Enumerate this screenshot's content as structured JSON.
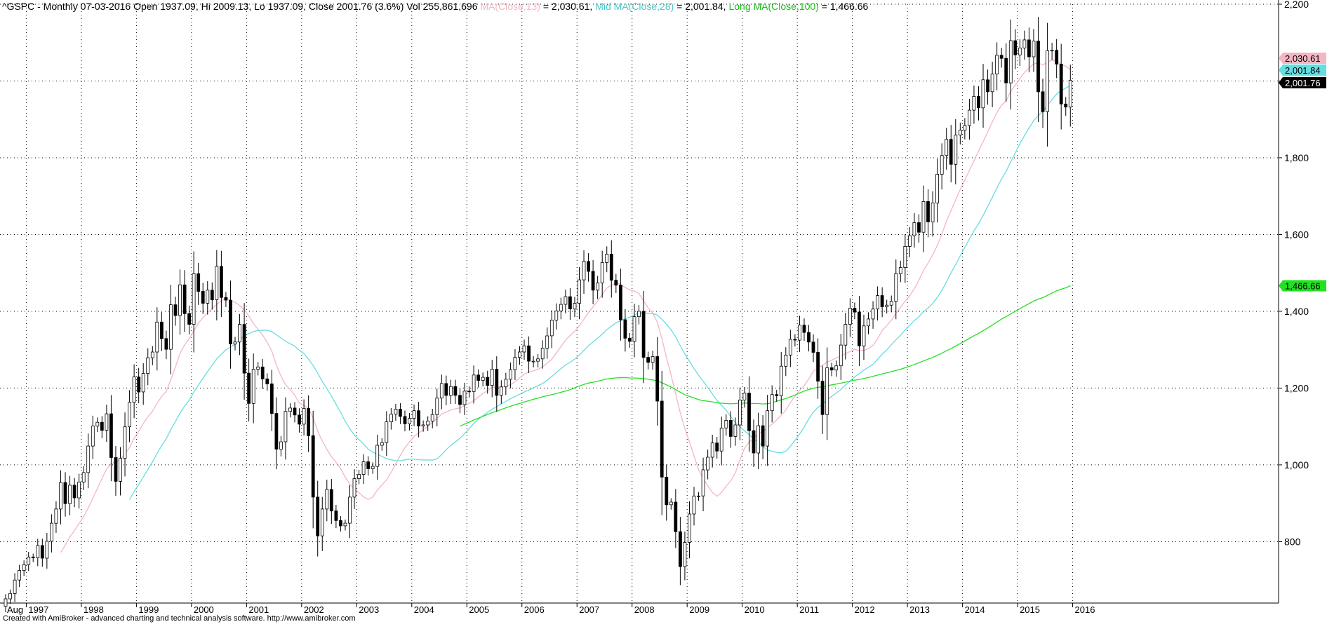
{
  "header": {
    "symbol_info": "^GSPC - Monthly 07-03-2016 Open 1937.09, Hi 2009.13, Lo 1937.09, Close 2001.76 (3.6%) Vol 255,861,696",
    "ma_label": "MA(Close,13)",
    "ma_value": " = 2,030.61,",
    "mid_label": "Mid MA(Close,28)",
    "mid_value": " = 2,001.84,",
    "long_label": "Long MA(Close,100)",
    "long_value": " = 1,466.66"
  },
  "footer": {
    "text": "Created with AmiBroker - advanced charting and technical analysis software. http://www.amibroker.com"
  },
  "colors": {
    "bull_body": "#ffffff",
    "bear_body": "#000000",
    "ma13": "#f4b6c2",
    "ma28": "#66dde0",
    "ma100": "#22e022",
    "grid": "#000000",
    "marker": "#aab3f5"
  },
  "chart_data": {
    "type": "candlestick",
    "title": "^GSPC - Monthly",
    "x_first_label": "Aug",
    "x_tick_labels": [
      "1997",
      "1998",
      "1999",
      "2000",
      "2001",
      "2002",
      "2003",
      "2004",
      "2005",
      "2006",
      "2007",
      "2008",
      "2009",
      "2010",
      "2011",
      "2012",
      "2013",
      "2014",
      "2015",
      "2016"
    ],
    "y_tick_labels": [
      "2,200",
      "2,000",
      "1,800",
      "1,600",
      "1,400",
      "1,200",
      "1,000",
      "800"
    ],
    "ylim": [
      640,
      2200
    ],
    "grid": true,
    "price_tags": [
      {
        "name": "ma13",
        "label": "2,030.61",
        "value": 2030.61,
        "color": "#f4b6c2"
      },
      {
        "name": "ma28",
        "label": "2,001.84",
        "value": 2001.84,
        "color": "#66dde0"
      },
      {
        "name": "close",
        "label": "2,001.76",
        "value": 2001.76,
        "color": "#000000"
      },
      {
        "name": "ma100",
        "label": "1,466.66",
        "value": 1466.66,
        "color": "#22e022"
      }
    ],
    "series": [
      {
        "name": "MA(Close,13)",
        "color": "#f4b6c2"
      },
      {
        "name": "Mid MA(Close,28)",
        "color": "#66dde0"
      },
      {
        "name": "Long MA(Close,100)",
        "color": "#22e022"
      }
    ],
    "start": "1996-08",
    "close": [
      651,
      665,
      700,
      725,
      740,
      760,
      758,
      790,
      757,
      801,
      848,
      885,
      954,
      899,
      947,
      914,
      955,
      980,
      1049,
      1101,
      1111,
      1090,
      1133,
      1019,
      957,
      1017,
      1099,
      1163,
      1229,
      1190,
      1238,
      1279,
      1294,
      1372,
      1329,
      1301,
      1417,
      1389,
      1469,
      1394,
      1366,
      1498,
      1452,
      1421,
      1455,
      1430,
      1517,
      1436,
      1429,
      1315,
      1320,
      1366,
      1239,
      1160,
      1249,
      1255,
      1224,
      1211,
      1134,
      1041,
      1060,
      1139,
      1148,
      1130,
      1106,
      1147,
      1076,
      916,
      815,
      885,
      936,
      880,
      855,
      841,
      848,
      916,
      964,
      975,
      1008,
      990,
      996,
      1051,
      1058,
      1112,
      1132,
      1145,
      1126,
      1107,
      1121,
      1141,
      1101,
      1104,
      1114,
      1131,
      1174,
      1212,
      1181,
      1204,
      1181,
      1157,
      1192,
      1191,
      1234,
      1220,
      1228,
      1207,
      1249,
      1181,
      1203,
      1223,
      1248,
      1280,
      1294,
      1310,
      1270,
      1270,
      1276,
      1304,
      1336,
      1377,
      1401,
      1418,
      1438,
      1406,
      1421,
      1482,
      1530,
      1504,
      1455,
      1474,
      1527,
      1549,
      1481,
      1468,
      1378,
      1330,
      1322,
      1386,
      1400,
      1280,
      1267,
      1282,
      1166,
      968,
      896,
      903,
      826,
      735,
      798,
      872,
      919,
      919,
      987,
      1020,
      1057,
      1036,
      1096,
      1116,
      1074,
      1104,
      1169,
      1187,
      1089,
      1031,
      1102,
      1049,
      1141,
      1183,
      1180,
      1257,
      1286,
      1327,
      1325,
      1364,
      1345,
      1320,
      1293,
      1218,
      1131,
      1253,
      1247,
      1258,
      1312,
      1366,
      1408,
      1398,
      1310,
      1362,
      1380,
      1406,
      1441,
      1412,
      1416,
      1426,
      1498,
      1514,
      1569,
      1597,
      1631,
      1606,
      1686,
      1633,
      1682,
      1757,
      1806,
      1848,
      1783,
      1859,
      1872,
      1884,
      1924,
      1960,
      1930,
      2003,
      1972,
      2018,
      2067,
      2059,
      1995,
      2105,
      2068,
      2086,
      2107,
      2063,
      2104,
      1972,
      1920,
      2079,
      2080,
      2044,
      1940,
      1932,
      2002
    ]
  }
}
